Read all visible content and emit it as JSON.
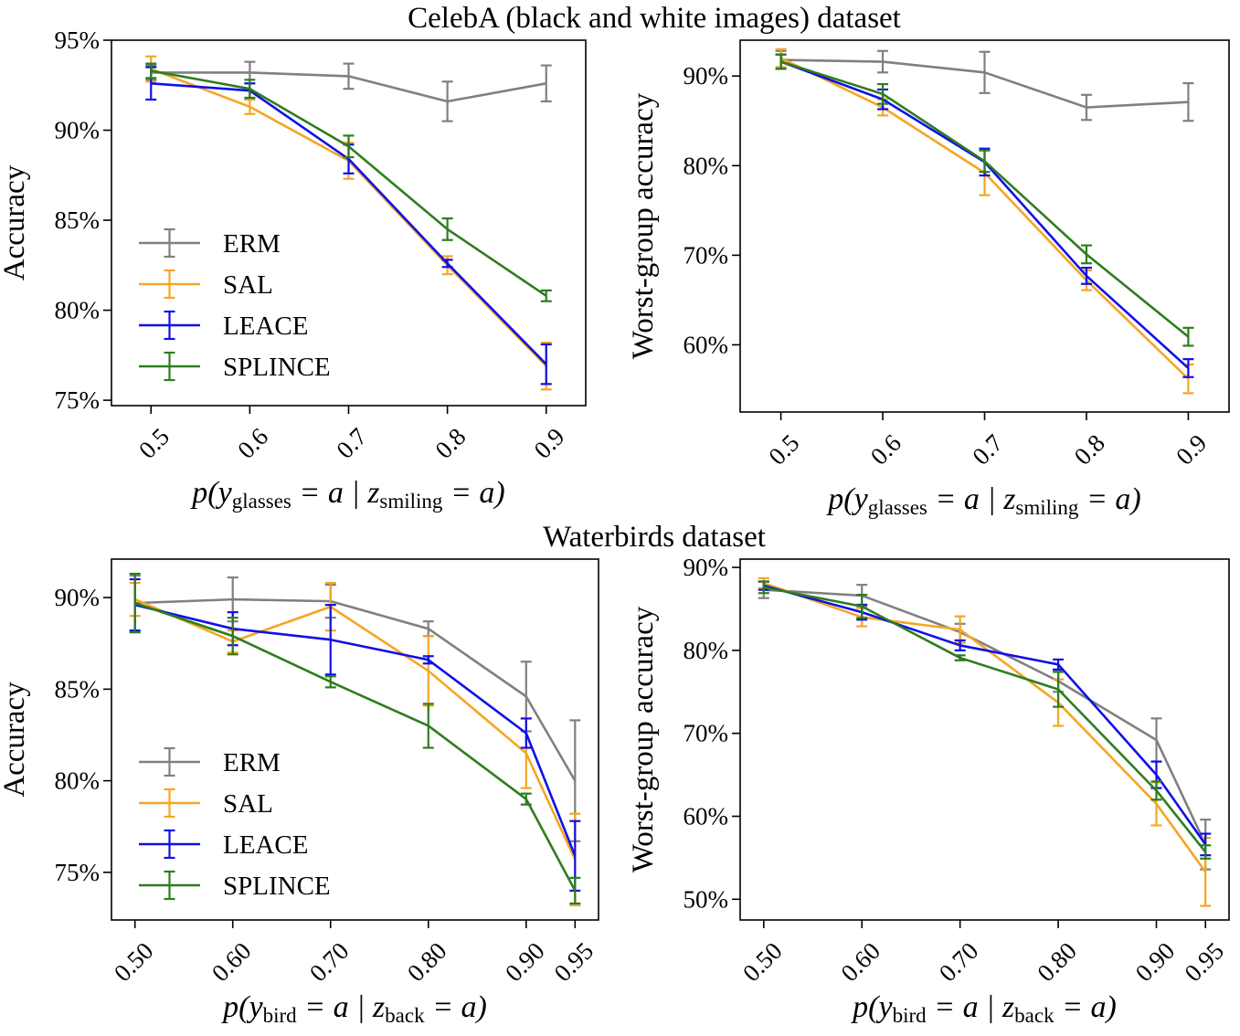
{
  "titles": [
    "CelebA (black and white images) dataset",
    "Waterbirds dataset"
  ],
  "colors": {
    "ERM": "#808080",
    "SAL": "#f5a623",
    "LEACE": "#1010e8",
    "SPLINCE": "#2e7d1e"
  },
  "chart_data": [
    {
      "type": "line",
      "dataset": "CelebA",
      "ylabel": "Accuracy",
      "xlabel": {
        "p": "p(",
        "y": "y",
        "ysub": "glasses",
        "mid": " = a | ",
        "z": "z",
        "zsub": "smiling",
        "end": " = a)"
      },
      "x": [
        0.5,
        0.6,
        0.7,
        0.8,
        0.9
      ],
      "xticklabels": [
        "0.5",
        "0.6",
        "0.7",
        "0.8",
        "0.9"
      ],
      "xlim": [
        0.46,
        0.94
      ],
      "ylim": [
        74.7,
        95.0
      ],
      "yticks": [
        75,
        80,
        85,
        90,
        95
      ],
      "yticklabels": [
        "75%",
        "80%",
        "85%",
        "90%",
        "95%"
      ],
      "legend": {
        "placement": "center-left",
        "entries": [
          "ERM",
          "SAL",
          "LEACE",
          "SPLINCE"
        ]
      },
      "series": [
        {
          "name": "ERM",
          "values": [
            93.2,
            93.2,
            93.0,
            91.6,
            92.6
          ],
          "err": [
            0.4,
            0.6,
            0.7,
            1.1,
            1.0
          ]
        },
        {
          "name": "SAL",
          "values": [
            93.4,
            91.3,
            88.3,
            82.5,
            76.9
          ],
          "err": [
            0.7,
            0.4,
            1.0,
            0.5,
            1.3
          ]
        },
        {
          "name": "LEACE",
          "values": [
            92.6,
            92.2,
            88.4,
            82.6,
            77.0
          ],
          "err": [
            0.9,
            0.4,
            0.8,
            0.2,
            1.1
          ]
        },
        {
          "name": "SPLINCE",
          "values": [
            93.3,
            92.3,
            89.1,
            84.5,
            80.8
          ],
          "err": [
            0.4,
            0.5,
            0.6,
            0.6,
            0.3
          ]
        }
      ]
    },
    {
      "type": "line",
      "dataset": "CelebA",
      "ylabel": "Worst-group accuracy",
      "xlabel": {
        "p": "p(",
        "y": "y",
        "ysub": "glasses",
        "mid": " = a | ",
        "z": "z",
        "zsub": "smiling",
        "end": " = a)"
      },
      "x": [
        0.5,
        0.6,
        0.7,
        0.8,
        0.9
      ],
      "xticklabels": [
        "0.5",
        "0.6",
        "0.7",
        "0.8",
        "0.9"
      ],
      "xlim": [
        0.46,
        0.94
      ],
      "ylim": [
        52.5,
        94.0
      ],
      "yticks": [
        60,
        70,
        80,
        90
      ],
      "yticklabels": [
        "60%",
        "70%",
        "80%",
        "90%"
      ],
      "series": [
        {
          "name": "ERM",
          "values": [
            91.8,
            91.6,
            90.4,
            86.5,
            87.1
          ],
          "err": [
            1.0,
            1.2,
            2.3,
            1.4,
            2.1
          ]
        },
        {
          "name": "SAL",
          "values": [
            92.0,
            86.5,
            79.2,
            67.2,
            56.2
          ],
          "err": [
            1.0,
            0.9,
            2.5,
            1.1,
            1.6
          ]
        },
        {
          "name": "LEACE",
          "values": [
            91.6,
            87.4,
            80.4,
            67.7,
            57.4
          ],
          "err": [
            0.8,
            1.1,
            1.5,
            0.9,
            1.0
          ]
        },
        {
          "name": "SPLINCE",
          "values": [
            91.6,
            88.0,
            80.5,
            70.1,
            60.9
          ],
          "err": [
            0.8,
            1.1,
            1.2,
            1.0,
            1.0
          ]
        }
      ]
    },
    {
      "type": "line",
      "dataset": "Waterbirds",
      "ylabel": "Accuracy",
      "xlabel": {
        "p": "p(",
        "y": "y",
        "ysub": "bird",
        "mid": " = a | ",
        "z": "z",
        "zsub": "back",
        "end": " = a)"
      },
      "x": [
        0.5,
        0.6,
        0.7,
        0.8,
        0.9,
        0.95
      ],
      "xticklabels": [
        "0.50",
        "0.60",
        "0.70",
        "0.80",
        "0.90",
        "0.95"
      ],
      "xlim": [
        0.476,
        0.974
      ],
      "ylim": [
        72.4,
        92.1
      ],
      "yticks": [
        75,
        80,
        85,
        90
      ],
      "yticklabels": [
        "75%",
        "80%",
        "85%",
        "90%"
      ],
      "legend": {
        "placement": "lower-left",
        "entries": [
          "ERM",
          "SAL",
          "LEACE",
          "SPLINCE"
        ]
      },
      "series": [
        {
          "name": "ERM",
          "values": [
            89.7,
            89.9,
            89.8,
            88.3,
            84.6,
            80.0
          ],
          "err": [
            1.5,
            1.2,
            0.9,
            0.4,
            1.9,
            3.3
          ]
        },
        {
          "name": "SAL",
          "values": [
            89.9,
            87.6,
            89.5,
            86.0,
            81.5,
            75.7
          ],
          "err": [
            0.9,
            0.6,
            1.3,
            1.9,
            1.9,
            2.5
          ]
        },
        {
          "name": "LEACE",
          "values": [
            89.6,
            88.3,
            87.7,
            86.6,
            82.6,
            75.9
          ],
          "err": [
            1.4,
            0.9,
            1.9,
            0.2,
            0.8,
            1.9
          ]
        },
        {
          "name": "SPLINCE",
          "values": [
            89.7,
            87.9,
            85.4,
            83.0,
            79.0,
            74.0
          ],
          "err": [
            1.6,
            1.0,
            0.3,
            1.2,
            0.3,
            0.7
          ]
        }
      ]
    },
    {
      "type": "line",
      "dataset": "Waterbirds",
      "ylabel": "Worst-group accuracy",
      "xlabel": {
        "p": "p(",
        "y": "y",
        "ysub": "bird",
        "mid": " = a | ",
        "z": "z",
        "zsub": "back",
        "end": " = a)"
      },
      "x": [
        0.5,
        0.6,
        0.7,
        0.8,
        0.9,
        0.95
      ],
      "xticklabels": [
        "0.50",
        "0.60",
        "0.70",
        "0.80",
        "0.90",
        "0.95"
      ],
      "xlim": [
        0.476,
        0.974
      ],
      "ylim": [
        47.5,
        91.0
      ],
      "yticks": [
        50,
        60,
        70,
        80,
        90
      ],
      "yticklabels": [
        "50%",
        "60%",
        "70%",
        "80%",
        "90%"
      ],
      "series": [
        {
          "name": "ERM",
          "values": [
            87.3,
            86.6,
            82.2,
            76.3,
            69.2,
            56.6
          ],
          "err": [
            1.0,
            1.3,
            1.0,
            1.3,
            2.6,
            3.0
          ]
        },
        {
          "name": "SAL",
          "values": [
            88.1,
            84.0,
            82.5,
            73.7,
            61.5,
            53.3
          ],
          "err": [
            0.6,
            1.1,
            1.6,
            2.8,
            2.6,
            4.1
          ]
        },
        {
          "name": "LEACE",
          "values": [
            87.8,
            84.6,
            80.6,
            78.3,
            65.0,
            56.6
          ],
          "err": [
            0.5,
            0.9,
            0.6,
            0.6,
            1.6,
            1.3
          ]
        },
        {
          "name": "SPLINCE",
          "values": [
            87.6,
            85.3,
            79.1,
            75.3,
            63.1,
            55.7
          ],
          "err": [
            0.7,
            1.4,
            0.3,
            2.1,
            1.1,
            0.8
          ]
        }
      ]
    }
  ]
}
